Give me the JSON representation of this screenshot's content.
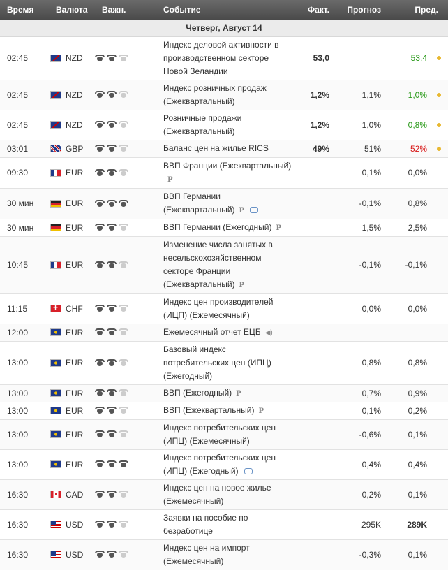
{
  "header": {
    "time": "Время",
    "currency": "Валюта",
    "importance": "Важн.",
    "event": "Событие",
    "actual": "Факт.",
    "forecast": "Прогноз",
    "previous": "Пред."
  },
  "date_label": "Четверг, Август 14",
  "colors": {
    "green": "#2a9a1a",
    "red": "#d81818",
    "dot": "#e8b830"
  },
  "rows": [
    {
      "time": "02:45",
      "flag": "nzd",
      "cur": "NZD",
      "imp": 2,
      "event": "Индекс деловой активности в производственном секторе Новой Зеландии",
      "actual": "53,0",
      "actual_color": "",
      "forecast": "",
      "previous": "53,4",
      "prev_color": "green",
      "dot": true,
      "mark": "",
      "h": 56
    },
    {
      "time": "02:45",
      "flag": "nzd",
      "cur": "NZD",
      "imp": 2,
      "event": "Индекс розничных продаж (Ежеквартальный)",
      "actual": "1,2%",
      "actual_color": "green",
      "forecast": "1,1%",
      "previous": "1,0%",
      "prev_color": "green",
      "dot": true,
      "mark": "",
      "h": 43
    },
    {
      "time": "02:45",
      "flag": "nzd",
      "cur": "NZD",
      "imp": 2,
      "event": "Розничные продажи (Ежеквартальный)",
      "actual": "1,2%",
      "actual_color": "green",
      "forecast": "1,0%",
      "previous": "0,8%",
      "prev_color": "green",
      "dot": true,
      "mark": "",
      "h": 43
    },
    {
      "time": "03:01",
      "flag": "gbp",
      "cur": "GBP",
      "imp": 2,
      "event": "Баланс цен на жилье RICS",
      "actual": "49%",
      "actual_color": "red",
      "forecast": "51%",
      "previous": "52%",
      "prev_color": "red",
      "dot": true,
      "mark": "",
      "h": 25
    },
    {
      "time": "09:30",
      "flag": "fr",
      "cur": "EUR",
      "imp": 2,
      "event": "ВВП Франции (Ежеквартальный)",
      "actual": "",
      "actual_color": "",
      "forecast": "0,1%",
      "previous": "0,0%",
      "prev_color": "",
      "dot": false,
      "mark": "P",
      "h": 43
    },
    {
      "time": "30 мин",
      "flag": "de",
      "cur": "EUR",
      "imp": 3,
      "event": "ВВП Германии (Ежеквартальный)",
      "actual": "",
      "actual_color": "",
      "forecast": "-0,1%",
      "previous": "0,8%",
      "prev_color": "",
      "dot": false,
      "mark": "P",
      "chat": true,
      "h": 43
    },
    {
      "time": "30 мин",
      "flag": "de",
      "cur": "EUR",
      "imp": 2,
      "event": "ВВП Германии (Ежегодный)",
      "actual": "",
      "actual_color": "",
      "forecast": "1,5%",
      "previous": "2,5%",
      "prev_color": "",
      "dot": false,
      "mark": "P",
      "h": 25
    },
    {
      "time": "10:45",
      "flag": "fr",
      "cur": "EUR",
      "imp": 2,
      "event": "Изменение числа занятых в несельскохозяйственном секторе Франции (Ежеквартальный)",
      "actual": "",
      "actual_color": "",
      "forecast": "-0,1%",
      "previous": "-0,1%",
      "prev_color": "",
      "dot": false,
      "mark": "P",
      "h": 80
    },
    {
      "time": "11:15",
      "flag": "ch",
      "cur": "CHF",
      "imp": 2,
      "event": "Индекс цен производителей (ИЦП) (Ежемесячный)",
      "actual": "",
      "actual_color": "",
      "forecast": "0,0%",
      "previous": "0,0%",
      "prev_color": "",
      "dot": false,
      "mark": "",
      "h": 43
    },
    {
      "time": "12:00",
      "flag": "eu",
      "cur": "EUR",
      "imp": 2,
      "event": "Ежемесячный отчет ЕЦБ",
      "actual": "",
      "actual_color": "",
      "forecast": "",
      "previous": "",
      "prev_color": "",
      "dot": false,
      "mark": "",
      "speaker": true,
      "h": 25
    },
    {
      "time": "13:00",
      "flag": "eu",
      "cur": "EUR",
      "imp": 2,
      "event": "Базовый индекс потребительских цен (ИПЦ) (Ежегодный)",
      "actual": "",
      "actual_color": "",
      "forecast": "0,8%",
      "previous": "0,8%",
      "prev_color": "",
      "dot": false,
      "mark": "",
      "h": 62
    },
    {
      "time": "13:00",
      "flag": "eu",
      "cur": "EUR",
      "imp": 2,
      "event": "ВВП (Ежегодный)",
      "actual": "",
      "actual_color": "",
      "forecast": "0,7%",
      "previous": "0,9%",
      "prev_color": "",
      "dot": false,
      "mark": "P",
      "h": 25
    },
    {
      "time": "13:00",
      "flag": "eu",
      "cur": "EUR",
      "imp": 2,
      "event": "ВВП (Ежеквартальный)",
      "actual": "",
      "actual_color": "",
      "forecast": "0,1%",
      "previous": "0,2%",
      "prev_color": "",
      "dot": false,
      "mark": "P",
      "h": 25
    },
    {
      "time": "13:00",
      "flag": "eu",
      "cur": "EUR",
      "imp": 2,
      "event": "Индекс потребительских цен (ИПЦ) (Ежемесячный)",
      "actual": "",
      "actual_color": "",
      "forecast": "-0,6%",
      "previous": "0,1%",
      "prev_color": "",
      "dot": false,
      "mark": "",
      "h": 43
    },
    {
      "time": "13:00",
      "flag": "eu",
      "cur": "EUR",
      "imp": 3,
      "event": "Индекс потребительских цен (ИПЦ) (Ежегодный)",
      "actual": "",
      "actual_color": "",
      "forecast": "0,4%",
      "previous": "0,4%",
      "prev_color": "",
      "dot": false,
      "mark": "",
      "chat": true,
      "h": 43
    },
    {
      "time": "16:30",
      "flag": "ca",
      "cur": "CAD",
      "imp": 2,
      "event": "Индекс цен на новое жилье (Ежемесячный)",
      "actual": "",
      "actual_color": "",
      "forecast": "0,2%",
      "previous": "0,1%",
      "prev_color": "",
      "dot": false,
      "mark": "",
      "h": 43
    },
    {
      "time": "16:30",
      "flag": "us",
      "cur": "USD",
      "imp": 2,
      "event": "Заявки на пособие по безработице",
      "actual": "",
      "actual_color": "",
      "forecast": "295K",
      "previous": "289K",
      "prev_color": "bold",
      "dot": false,
      "mark": "",
      "h": 43
    },
    {
      "time": "16:30",
      "flag": "us",
      "cur": "USD",
      "imp": 2,
      "event": "Индекс цен на импорт (Ежемесячный)",
      "actual": "",
      "actual_color": "",
      "forecast": "-0,3%",
      "previous": "0,1%",
      "prev_color": "",
      "dot": false,
      "mark": "",
      "h": 43
    }
  ]
}
